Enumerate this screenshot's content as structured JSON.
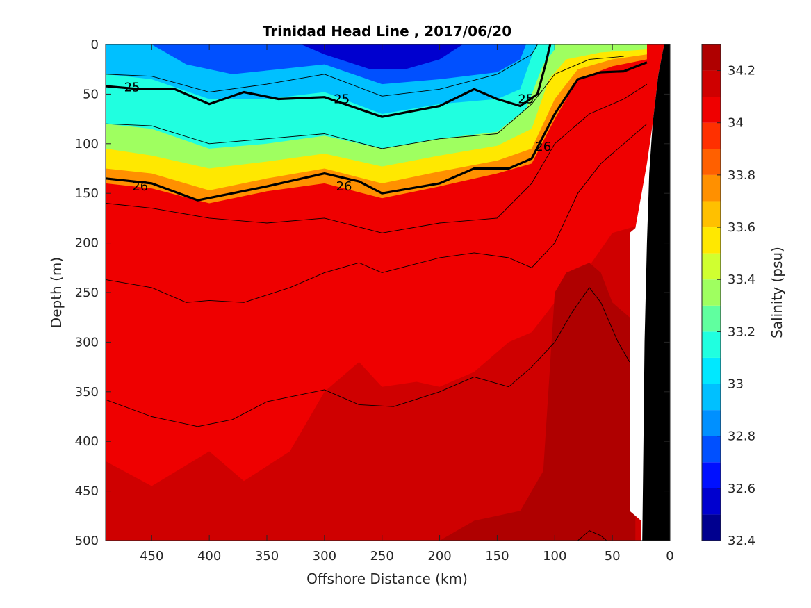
{
  "chart_data": {
    "type": "heatmap",
    "title": "Trinidad Head Line , 2017/06/20",
    "xlabel": "Offshore Distance (km)",
    "ylabel": "Depth (m)",
    "colorbar_label": "Salinity (psu)",
    "xlim": [
      490,
      0
    ],
    "ylim": [
      0,
      500
    ],
    "x_reversed": true,
    "y_reversed": true,
    "x_ticks": [
      450,
      400,
      350,
      300,
      250,
      200,
      150,
      100,
      50,
      0
    ],
    "y_ticks": [
      0,
      50,
      100,
      150,
      200,
      250,
      300,
      350,
      400,
      450,
      500
    ],
    "colorbar": {
      "range": [
        32.4,
        34.3
      ],
      "ticks": [
        32.4,
        32.6,
        32.8,
        33,
        33.2,
        33.4,
        33.6,
        33.8,
        34,
        34.2
      ],
      "levels": [
        32.4,
        32.5,
        32.6,
        32.7,
        32.8,
        32.9,
        33.0,
        33.1,
        33.2,
        33.3,
        33.4,
        33.5,
        33.6,
        33.7,
        33.8,
        33.9,
        34.0,
        34.1,
        34.2,
        34.3
      ],
      "colors": [
        "#00008f",
        "#0000cf",
        "#0010ff",
        "#0050ff",
        "#0090ff",
        "#00c0ff",
        "#00e8ff",
        "#20ffe0",
        "#60ff9f",
        "#9fff60",
        "#d0ff30",
        "#ffe800",
        "#ffc000",
        "#ff9000",
        "#ff6000",
        "#ff3000",
        "#ef0000",
        "#cf0000",
        "#af0000"
      ]
    },
    "salinity_layers": [
      {
        "level": 33.8,
        "points": [
          [
            490,
            120
          ],
          [
            450,
            125
          ],
          [
            400,
            145
          ],
          [
            350,
            142
          ],
          [
            300,
            135
          ],
          [
            250,
            145
          ],
          [
            200,
            135
          ],
          [
            150,
            125
          ],
          [
            120,
            115
          ],
          [
            100,
            50
          ],
          [
            80,
            20
          ],
          [
            50,
            10
          ],
          [
            20,
            5
          ]
        ]
      },
      {
        "level": 34.0,
        "points": [
          [
            490,
            180
          ],
          [
            450,
            178
          ],
          [
            400,
            185
          ],
          [
            350,
            192
          ],
          [
            300,
            182
          ],
          [
            250,
            195
          ],
          [
            200,
            182
          ],
          [
            150,
            190
          ],
          [
            120,
            200
          ],
          [
            100,
            140
          ],
          [
            80,
            90
          ],
          [
            50,
            70
          ],
          [
            20,
            55
          ]
        ]
      },
      {
        "level": 34.1,
        "points": [
          [
            490,
            420
          ],
          [
            450,
            445
          ],
          [
            400,
            410
          ],
          [
            370,
            440
          ],
          [
            330,
            410
          ],
          [
            300,
            350
          ],
          [
            270,
            320
          ],
          [
            250,
            345
          ],
          [
            220,
            340
          ],
          [
            200,
            345
          ],
          [
            170,
            330
          ],
          [
            140,
            300
          ],
          [
            120,
            290
          ],
          [
            100,
            260
          ],
          [
            80,
            240
          ],
          [
            50,
            190
          ],
          [
            20,
            180
          ]
        ]
      },
      {
        "level": 34.2,
        "points": [
          [
            490,
            500
          ],
          [
            200,
            500
          ],
          [
            170,
            480
          ],
          [
            130,
            470
          ],
          [
            110,
            430
          ],
          [
            100,
            250
          ],
          [
            90,
            230
          ],
          [
            70,
            220
          ],
          [
            60,
            230
          ],
          [
            50,
            260
          ],
          [
            30,
            280
          ],
          [
            30,
            500
          ]
        ]
      }
    ],
    "contour_lines": [
      {
        "sigma": 25,
        "bold": true,
        "points": [
          [
            490,
            42
          ],
          [
            460,
            45
          ],
          [
            430,
            45
          ],
          [
            400,
            60
          ],
          [
            370,
            48
          ],
          [
            340,
            55
          ],
          [
            300,
            53
          ],
          [
            270,
            65
          ],
          [
            250,
            73
          ],
          [
            200,
            62
          ],
          [
            170,
            45
          ],
          [
            150,
            55
          ],
          [
            130,
            62
          ],
          [
            115,
            50
          ],
          [
            108,
            20
          ],
          [
            104,
            0
          ]
        ]
      },
      {
        "sigma": 26,
        "bold": true,
        "points": [
          [
            490,
            135
          ],
          [
            450,
            140
          ],
          [
            410,
            157
          ],
          [
            380,
            150
          ],
          [
            350,
            143
          ],
          [
            300,
            130
          ],
          [
            270,
            138
          ],
          [
            250,
            150
          ],
          [
            200,
            140
          ],
          [
            170,
            125
          ],
          [
            140,
            125
          ],
          [
            120,
            115
          ],
          [
            100,
            70
          ],
          [
            80,
            35
          ],
          [
            60,
            28
          ],
          [
            40,
            27
          ],
          [
            20,
            18
          ]
        ]
      },
      {
        "sigma": null,
        "bold": false,
        "points": [
          [
            490,
            30
          ],
          [
            450,
            32
          ],
          [
            400,
            48
          ],
          [
            350,
            40
          ],
          [
            300,
            30
          ],
          [
            250,
            52
          ],
          [
            200,
            45
          ],
          [
            150,
            30
          ],
          [
            120,
            10
          ],
          [
            115,
            0
          ]
        ]
      },
      {
        "sigma": null,
        "bold": false,
        "points": [
          [
            490,
            80
          ],
          [
            450,
            82
          ],
          [
            400,
            100
          ],
          [
            350,
            95
          ],
          [
            300,
            90
          ],
          [
            250,
            105
          ],
          [
            200,
            95
          ],
          [
            150,
            90
          ],
          [
            120,
            60
          ],
          [
            100,
            30
          ],
          [
            70,
            15
          ],
          [
            40,
            12
          ]
        ]
      },
      {
        "sigma": null,
        "bold": false,
        "points": [
          [
            490,
            160
          ],
          [
            450,
            165
          ],
          [
            400,
            175
          ],
          [
            350,
            180
          ],
          [
            300,
            175
          ],
          [
            250,
            190
          ],
          [
            200,
            180
          ],
          [
            150,
            175
          ],
          [
            120,
            140
          ],
          [
            100,
            100
          ],
          [
            70,
            70
          ],
          [
            40,
            55
          ],
          [
            20,
            40
          ]
        ]
      },
      {
        "sigma": null,
        "bold": false,
        "points": [
          [
            490,
            237
          ],
          [
            450,
            245
          ],
          [
            420,
            260
          ],
          [
            400,
            258
          ],
          [
            370,
            260
          ],
          [
            330,
            245
          ],
          [
            300,
            230
          ],
          [
            270,
            220
          ],
          [
            250,
            230
          ],
          [
            200,
            215
          ],
          [
            170,
            210
          ],
          [
            140,
            215
          ],
          [
            120,
            225
          ],
          [
            100,
            200
          ],
          [
            80,
            150
          ],
          [
            60,
            120
          ],
          [
            40,
            100
          ],
          [
            20,
            80
          ]
        ]
      },
      {
        "sigma": null,
        "bold": false,
        "points": [
          [
            490,
            358
          ],
          [
            450,
            375
          ],
          [
            410,
            385
          ],
          [
            380,
            378
          ],
          [
            350,
            360
          ],
          [
            300,
            348
          ],
          [
            270,
            363
          ],
          [
            240,
            365
          ],
          [
            200,
            350
          ],
          [
            170,
            335
          ],
          [
            140,
            345
          ],
          [
            120,
            325
          ],
          [
            100,
            300
          ],
          [
            85,
            270
          ],
          [
            70,
            245
          ],
          [
            60,
            260
          ],
          [
            45,
            300
          ],
          [
            35,
            320
          ]
        ]
      },
      {
        "sigma": null,
        "bold": false,
        "points": [
          [
            80,
            500
          ],
          [
            70,
            490
          ],
          [
            60,
            495
          ],
          [
            55,
            500
          ]
        ]
      }
    ],
    "contour_labels": [
      {
        "text": "25",
        "x": 467,
        "y": 43
      },
      {
        "text": "25",
        "x": 285,
        "y": 55
      },
      {
        "text": "25",
        "x": 125,
        "y": 55
      },
      {
        "text": "26",
        "x": 460,
        "y": 143
      },
      {
        "text": "26",
        "x": 283,
        "y": 143
      },
      {
        "text": "26",
        "x": 110,
        "y": 103
      }
    ],
    "bottom_mask": [
      [
        0,
        0
      ],
      [
        0,
        500
      ],
      [
        25,
        500
      ],
      [
        25,
        480
      ],
      [
        35,
        470
      ],
      [
        35,
        190
      ],
      [
        30,
        185
      ],
      [
        20,
        120
      ],
      [
        15,
        80
      ],
      [
        10,
        30
      ],
      [
        5,
        0
      ]
    ],
    "bathymetry": [
      [
        0,
        0
      ],
      [
        5,
        0
      ],
      [
        10,
        30
      ],
      [
        15,
        80
      ],
      [
        18,
        130
      ],
      [
        20,
        200
      ],
      [
        22,
        300
      ],
      [
        23,
        400
      ],
      [
        24,
        500
      ],
      [
        0,
        500
      ]
    ]
  }
}
